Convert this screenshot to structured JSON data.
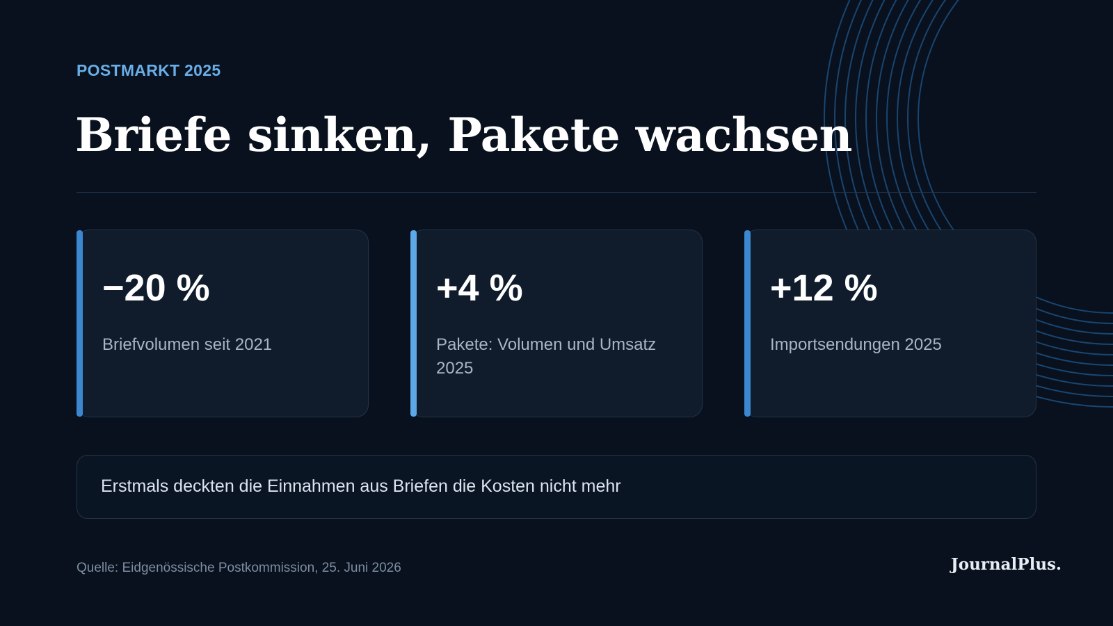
{
  "kicker": "POSTMARKT 2025",
  "headline": "Briefe sinken, Pakete wachsen",
  "cards": [
    {
      "value": "−20 %",
      "label": "Briefvolumen seit 2021",
      "accent": "#3b87d0"
    },
    {
      "value": "+4 %",
      "label": "Pakete: Volumen und Umsatz 2025",
      "accent": "#5da8e6"
    },
    {
      "value": "+12 %",
      "label": "Importsendungen 2025",
      "accent": "#3b87d0"
    }
  ],
  "note": "Erstmals deckten die Einnahmen aus Briefen die Kosten nicht mehr",
  "source": "Quelle: Eidgenössische Postkommission, 25. Juni 2026",
  "brand": "JournalPlus.",
  "colors": {
    "background": "#08111d",
    "kicker": "#6aaee8",
    "rings": "#1d4f80"
  }
}
